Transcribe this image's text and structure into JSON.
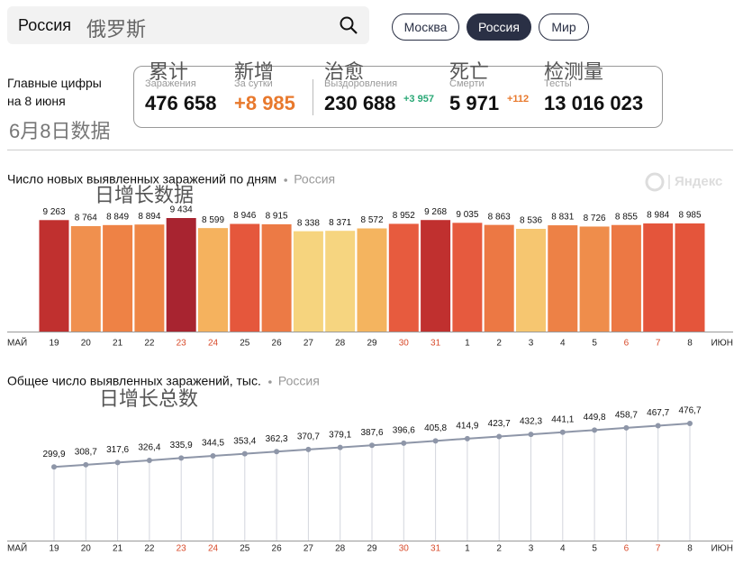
{
  "search": {
    "query": "Россия",
    "annotation": "俄罗斯"
  },
  "tabs": [
    "Москва",
    "Россия",
    "Мир"
  ],
  "summary": {
    "heading_lines": [
      "Главные цифры",
      "на 8 июня"
    ],
    "annotation": "6月8日数据"
  },
  "stats": [
    {
      "annotation": "累计",
      "label": "Заражения",
      "value": "476 658"
    },
    {
      "annotation": "新增",
      "label": "За сутки",
      "value": "+8 985"
    },
    {
      "annotation": "治愈",
      "label": "Выздоровления",
      "value": "230 688",
      "delta": "+3 957"
    },
    {
      "annotation": "死亡",
      "label": "Смерти",
      "value": "5 971",
      "delta": "+112"
    },
    {
      "annotation": "检测量",
      "label": "Тесты",
      "value": "13 016 023"
    }
  ],
  "chart_data": [
    {
      "type": "bar",
      "title": "Число новых выявленных заражений по дням",
      "subtitle": "Россия",
      "watermark": "Яндекс",
      "annotation": "日增长数据",
      "categories": [
        "19",
        "20",
        "21",
        "22",
        "23",
        "24",
        "25",
        "26",
        "27",
        "28",
        "29",
        "30",
        "31",
        "1",
        "2",
        "3",
        "4",
        "5",
        "6",
        "7",
        "8"
      ],
      "category_colors": [
        "#222",
        "#222",
        "#222",
        "#222",
        "#d84a2a",
        "#d84a2a",
        "#222",
        "#222",
        "#222",
        "#222",
        "#222",
        "#d84a2a",
        "#d84a2a",
        "#222",
        "#222",
        "#222",
        "#222",
        "#222",
        "#d84a2a",
        "#d84a2a",
        "#222"
      ],
      "axis_labels": [
        "МАЙ",
        "ИЮН"
      ],
      "values": [
        9263,
        8764,
        8849,
        8894,
        9434,
        8599,
        8946,
        8915,
        8338,
        8371,
        8572,
        8952,
        9268,
        9035,
        8863,
        8536,
        8831,
        8726,
        8855,
        8984,
        8985
      ],
      "value_labels": [
        "9 263",
        "8 764",
        "8 849",
        "8 894",
        "9 434",
        "8 599",
        "8 946",
        "8 915",
        "8 338",
        "8 371",
        "8 572",
        "8 952",
        "9 268",
        "9 035",
        "8 863",
        "8 536",
        "8 831",
        "8 726",
        "8 855",
        "8 984",
        "8 985"
      ],
      "colors": [
        "#c0302f",
        "#f0904e",
        "#ee8245",
        "#ee8646",
        "#a82430",
        "#f5b25e",
        "#e5573c",
        "#ec7a45",
        "#f6d47e",
        "#f6d580",
        "#f4b45f",
        "#e75b3e",
        "#c0302f",
        "#e65a3e",
        "#ec7844",
        "#f6c670",
        "#ed8146",
        "#ef8d4b",
        "#ec7844",
        "#e4553b",
        "#e4553b"
      ]
    },
    {
      "type": "line",
      "title": "Общее число выявленных заражений, тыс.",
      "subtitle": "Россия",
      "annotation": "日增长总数",
      "categories": [
        "19",
        "20",
        "21",
        "22",
        "23",
        "24",
        "25",
        "26",
        "27",
        "28",
        "29",
        "30",
        "31",
        "1",
        "2",
        "3",
        "4",
        "5",
        "6",
        "7",
        "8"
      ],
      "category_colors": [
        "#222",
        "#222",
        "#222",
        "#222",
        "#d84a2a",
        "#d84a2a",
        "#222",
        "#222",
        "#222",
        "#222",
        "#222",
        "#d84a2a",
        "#d84a2a",
        "#222",
        "#222",
        "#222",
        "#222",
        "#222",
        "#d84a2a",
        "#d84a2a",
        "#222"
      ],
      "axis_labels": [
        "МАЙ",
        "ИЮН"
      ],
      "values": [
        299.9,
        308.7,
        317.6,
        326.4,
        335.9,
        344.5,
        353.4,
        362.3,
        370.7,
        379.1,
        387.6,
        396.6,
        405.8,
        414.9,
        423.7,
        432.3,
        441.1,
        449.8,
        458.7,
        467.7,
        476.7
      ],
      "value_labels": [
        "299,9",
        "308,7",
        "317,6",
        "326,4",
        "335,9",
        "344,5",
        "353,4",
        "362,3",
        "370,7",
        "379,1",
        "387,6",
        "396,6",
        "405,8",
        "414,9",
        "423,7",
        "432,3",
        "441,1",
        "449,8",
        "458,7",
        "467,7",
        "476,7"
      ],
      "color": "#8e96a8"
    }
  ]
}
